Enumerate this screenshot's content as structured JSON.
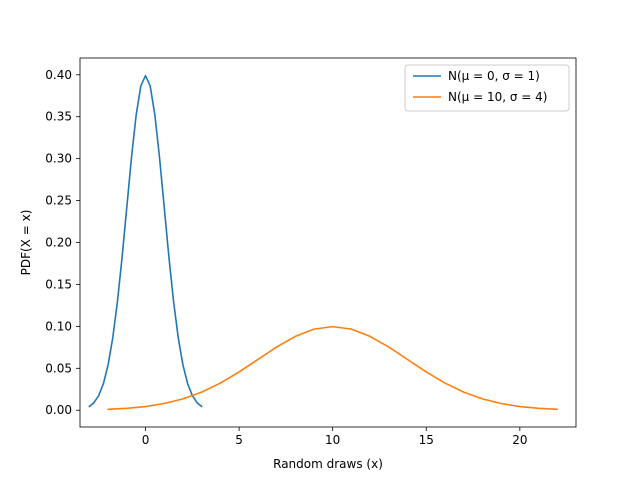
{
  "chart_data": {
    "type": "line",
    "title": "",
    "xlabel": "Random draws (x)",
    "ylabel": "PDF(X = x)",
    "xlim": [
      -3.5,
      23.0
    ],
    "ylim": [
      -0.02,
      0.42
    ],
    "xticks": [
      0,
      5,
      10,
      15,
      20
    ],
    "xtick_labels": [
      "0",
      "5",
      "10",
      "15",
      "20"
    ],
    "yticks": [
      0.0,
      0.05,
      0.1,
      0.15,
      0.2,
      0.25,
      0.3,
      0.35,
      0.4
    ],
    "ytick_labels": [
      "0.00",
      "0.05",
      "0.10",
      "0.15",
      "0.20",
      "0.25",
      "0.30",
      "0.35",
      "0.40"
    ],
    "grid": false,
    "legend_position": "upper-right",
    "series": [
      {
        "name": "N(μ = 0, σ = 1)",
        "color": "#1f77b4",
        "x": [
          -3.0,
          -2.75,
          -2.5,
          -2.25,
          -2.0,
          -1.75,
          -1.5,
          -1.25,
          -1.0,
          -0.75,
          -0.5,
          -0.25,
          0.0,
          0.25,
          0.5,
          0.75,
          1.0,
          1.25,
          1.5,
          1.75,
          2.0,
          2.25,
          2.5,
          2.75,
          3.0
        ],
        "y": [
          0.0044,
          0.0091,
          0.0175,
          0.0317,
          0.054,
          0.0863,
          0.1295,
          0.1826,
          0.242,
          0.3011,
          0.3521,
          0.3867,
          0.3989,
          0.3867,
          0.3521,
          0.3011,
          0.242,
          0.1826,
          0.1295,
          0.0863,
          0.054,
          0.0317,
          0.0175,
          0.0091,
          0.0044
        ]
      },
      {
        "name": "N(μ = 10, σ = 4)",
        "color": "#ff7f0e",
        "x": [
          -2,
          -1,
          0,
          1,
          2,
          3,
          4,
          5,
          6,
          7,
          8,
          9,
          10,
          11,
          12,
          13,
          14,
          15,
          16,
          17,
          18,
          19,
          20,
          21,
          22
        ],
        "y": [
          0.0011,
          0.0023,
          0.0044,
          0.008,
          0.0135,
          0.0216,
          0.0324,
          0.0457,
          0.0605,
          0.0753,
          0.088,
          0.0967,
          0.0997,
          0.0967,
          0.088,
          0.0753,
          0.0605,
          0.0457,
          0.0324,
          0.0216,
          0.0135,
          0.008,
          0.0044,
          0.0023,
          0.0011
        ]
      }
    ]
  }
}
